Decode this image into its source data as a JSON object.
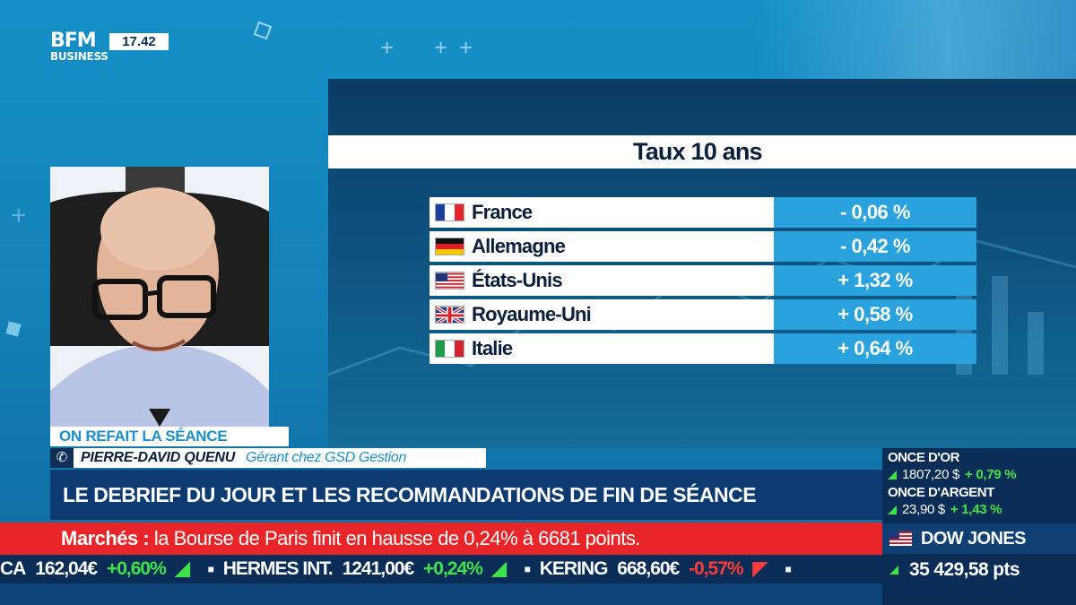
{
  "channel": {
    "logo_line1": "BFM",
    "logo_line2": "BUSINESS",
    "time": "17.42"
  },
  "rates_panel": {
    "title": "Taux 10 ans",
    "rows": [
      {
        "country": "France",
        "flag": "france-flag",
        "value": "- 0,06 %"
      },
      {
        "country": "Allemagne",
        "flag": "germany-flag",
        "value": "- 0,42 %"
      },
      {
        "country": "États-Unis",
        "flag": "usa-flag",
        "value": "+ 1,32 %"
      },
      {
        "country": "Royaume-Uni",
        "flag": "uk-flag",
        "value": "+ 0,58 %"
      },
      {
        "country": "Italie",
        "flag": "italy-flag",
        "value": "+ 0,64 %"
      }
    ]
  },
  "lower_third": {
    "show": "ON REFAIT LA SÉANCE",
    "guest_name": "PIERRE-DAVID QUENU",
    "guest_role": "Gérant chez GSD Gestion",
    "headline": "LE DEBRIEF DU JOUR ET LES RECOMMANDATIONS DE FIN DE SÉANCE"
  },
  "breaking": {
    "label": "Marchés :",
    "text": "la Bourse de Paris finit en hausse de 0,24% à 6681 points."
  },
  "ticker": {
    "items": [
      {
        "name": "CA",
        "price": "162,04€",
        "change": "+0,60%",
        "direction": "up"
      },
      {
        "name": "HERMES INT.",
        "price": "1241,00€",
        "change": "+0,24%",
        "direction": "up"
      },
      {
        "name": "KERING",
        "price": "668,60€",
        "change": "-0,57%",
        "direction": "down"
      }
    ]
  },
  "market_box": {
    "gold_label": "ONCE D'OR",
    "gold_value": "1807,20 $",
    "gold_change": "+ 0,79 %",
    "silver_label": "ONCE D'ARGENT",
    "silver_value": "23,90 $",
    "silver_change": "+ 1,43 %",
    "index_name": "DOW JONES",
    "index_value": "35 429,58 pts"
  },
  "colors": {
    "accent_blue": "#1c8fcf",
    "navy": "#0a2d57",
    "breaking_red": "#e8262a",
    "up_green": "#3ee24a",
    "down_red": "#ff3b3b"
  }
}
